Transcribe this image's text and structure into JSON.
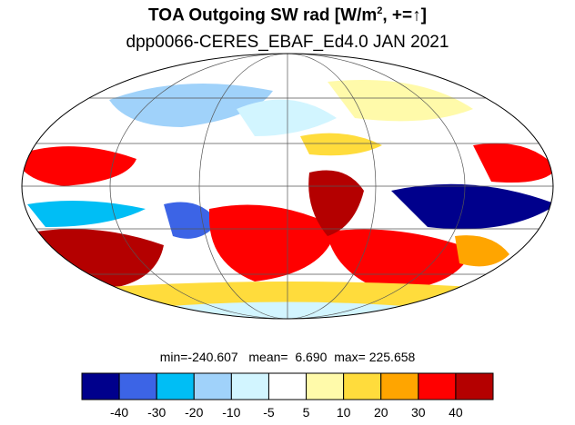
{
  "title": {
    "main_prefix": "TOA Outgoing SW rad [W/m",
    "main_sup": "2",
    "main_suffix": ", +=↑]",
    "subtitle": "dpp0066-CERES_EBAF_Ed4.0 JAN 2021"
  },
  "stats": {
    "min_label": "min=",
    "min": "-240.607",
    "mean_label": "mean=",
    "mean": "6.690",
    "max_label": "max=",
    "max": "225.658"
  },
  "colorbar": {
    "colors": [
      "#00008c",
      "#3c64e6",
      "#00bef5",
      "#a0d2fa",
      "#d2f5ff",
      "#ffffff",
      "#fffaaa",
      "#ffdc3c",
      "#ffa500",
      "#ff0000",
      "#b40000"
    ],
    "ticks": [
      "-40",
      "-30",
      "-20",
      "-10",
      "-5",
      "5",
      "10",
      "20",
      "30",
      "40"
    ]
  },
  "map": {
    "projection": "Mollweide",
    "grid": true
  }
}
